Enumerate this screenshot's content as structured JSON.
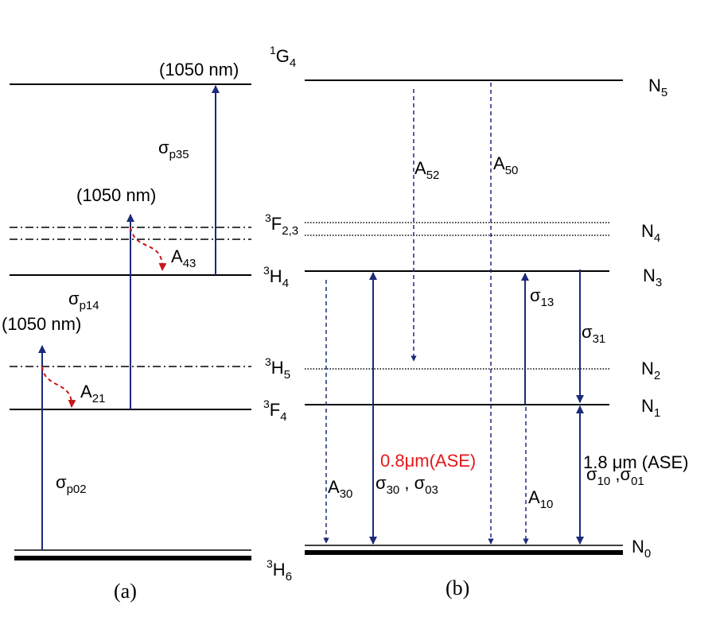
{
  "panel_a": {
    "caption": "(a)",
    "pump_wavelength_top": "(1050 nm)",
    "pump_wavelength_mid": "(1050 nm)",
    "pump_wavelength_low": "(1050 nm)",
    "sigma_p35": {
      "base": "σ",
      "sub": "p35"
    },
    "sigma_p14": {
      "base": "σ",
      "sub": "p14"
    },
    "sigma_p02": {
      "base": "σ",
      "sub": "p02"
    },
    "a43": {
      "base": "A",
      "sub": "43"
    },
    "a21": {
      "base": "A",
      "sub": "21"
    }
  },
  "level_terms": {
    "g4": {
      "sup": "1",
      "base": "G",
      "sub": "4"
    },
    "f23": {
      "sup": "3",
      "base": "F",
      "sub": "2,3"
    },
    "h4": {
      "sup": "3",
      "base": "H",
      "sub": "4"
    },
    "h5": {
      "sup": "3",
      "base": "H",
      "sub": "5"
    },
    "f4": {
      "sup": "3",
      "base": "F",
      "sub": "4"
    },
    "h6": {
      "sup": "3",
      "base": "H",
      "sub": "6"
    }
  },
  "panel_b": {
    "caption": "(b)",
    "n5": {
      "base": "N",
      "sub": "5"
    },
    "n4": {
      "base": "N",
      "sub": "4"
    },
    "n3": {
      "base": "N",
      "sub": "3"
    },
    "n2": {
      "base": "N",
      "sub": "2"
    },
    "n1": {
      "base": "N",
      "sub": "1"
    },
    "n0": {
      "base": "N",
      "sub": "0"
    },
    "a52": {
      "base": "A",
      "sub": "52"
    },
    "a50": {
      "base": "A",
      "sub": "50"
    },
    "a30": {
      "base": "A",
      "sub": "30"
    },
    "a10": {
      "base": "A",
      "sub": "10"
    },
    "sigma13": {
      "base": "σ",
      "sub": "13"
    },
    "sigma31": {
      "base": "σ",
      "sub": "31"
    },
    "sigma30_03": {
      "base1": "σ",
      "sub1": "30",
      "sep": " , ",
      "base2": "σ",
      "sub2": "03"
    },
    "sigma10_01": {
      "base1": "σ",
      "sub1": "10",
      "sep": " ,",
      "base2": "σ",
      "sub2": "01"
    },
    "ase_08": "0.8μm(ASE)",
    "ase_18": "1.8 μm (ASE)"
  },
  "colors": {
    "arrow": "#1b2a7a",
    "relax": "#c8161b",
    "ase_red": "#e8161a",
    "line": "#000000"
  }
}
